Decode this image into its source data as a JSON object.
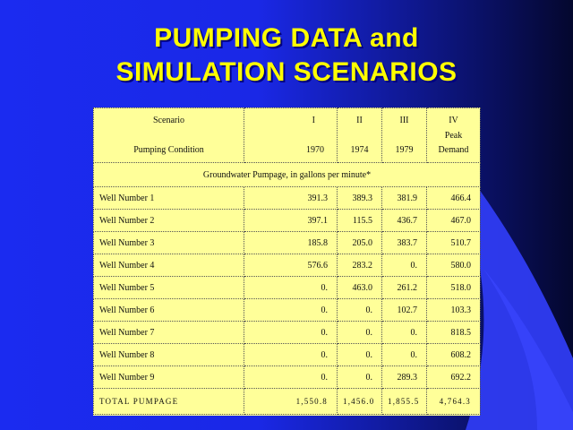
{
  "title": {
    "line1": "PUMPING DATA and",
    "line2": "SIMULATION SCENARIOS"
  },
  "table": {
    "header": {
      "scenario_label": "Scenario",
      "condition_label": "Pumping Condition",
      "columns": [
        {
          "numeral": "I",
          "sub": "",
          "year": "1970"
        },
        {
          "numeral": "II",
          "sub": "",
          "year": "1974"
        },
        {
          "numeral": "III",
          "sub": "",
          "year": "1979"
        },
        {
          "numeral": "IV",
          "sub": "Peak",
          "year": "Demand"
        }
      ]
    },
    "subheader": "Groundwater Pumpage, in gallons per minute*",
    "rows": [
      {
        "name": "Well Number 1",
        "values": [
          "391.3",
          "389.3",
          "381.9",
          "466.4"
        ]
      },
      {
        "name": "Well Number 2",
        "values": [
          "397.1",
          "115.5",
          "436.7",
          "467.0"
        ]
      },
      {
        "name": "Well Number 3",
        "values": [
          "185.8",
          "205.0",
          "383.7",
          "510.7"
        ]
      },
      {
        "name": "Well Number 4",
        "values": [
          "576.6",
          "283.2",
          "0.",
          "580.0"
        ]
      },
      {
        "name": "Well Number 5",
        "values": [
          "0.",
          "463.0",
          "261.2",
          "518.0"
        ]
      },
      {
        "name": "Well Number 6",
        "values": [
          "0.",
          "0.",
          "102.7",
          "103.3"
        ]
      },
      {
        "name": "Well Number 7",
        "values": [
          "0.",
          "0.",
          "0.",
          "818.5"
        ]
      },
      {
        "name": "Well Number 8",
        "values": [
          "0.",
          "0.",
          "0.",
          "608.2"
        ]
      },
      {
        "name": "Well Number 9",
        "values": [
          "0.",
          "0.",
          "289.3",
          "692.2"
        ]
      }
    ],
    "total": {
      "label": "TOTAL PUMPAGE",
      "values": [
        "1,550.8",
        "1,456.0",
        "1,855.5",
        "4,764.3"
      ]
    }
  },
  "colors": {
    "title": "#ffff00",
    "panel": "#ffff99",
    "background_left": "#1b2bf0",
    "background_right": "#04072e"
  }
}
